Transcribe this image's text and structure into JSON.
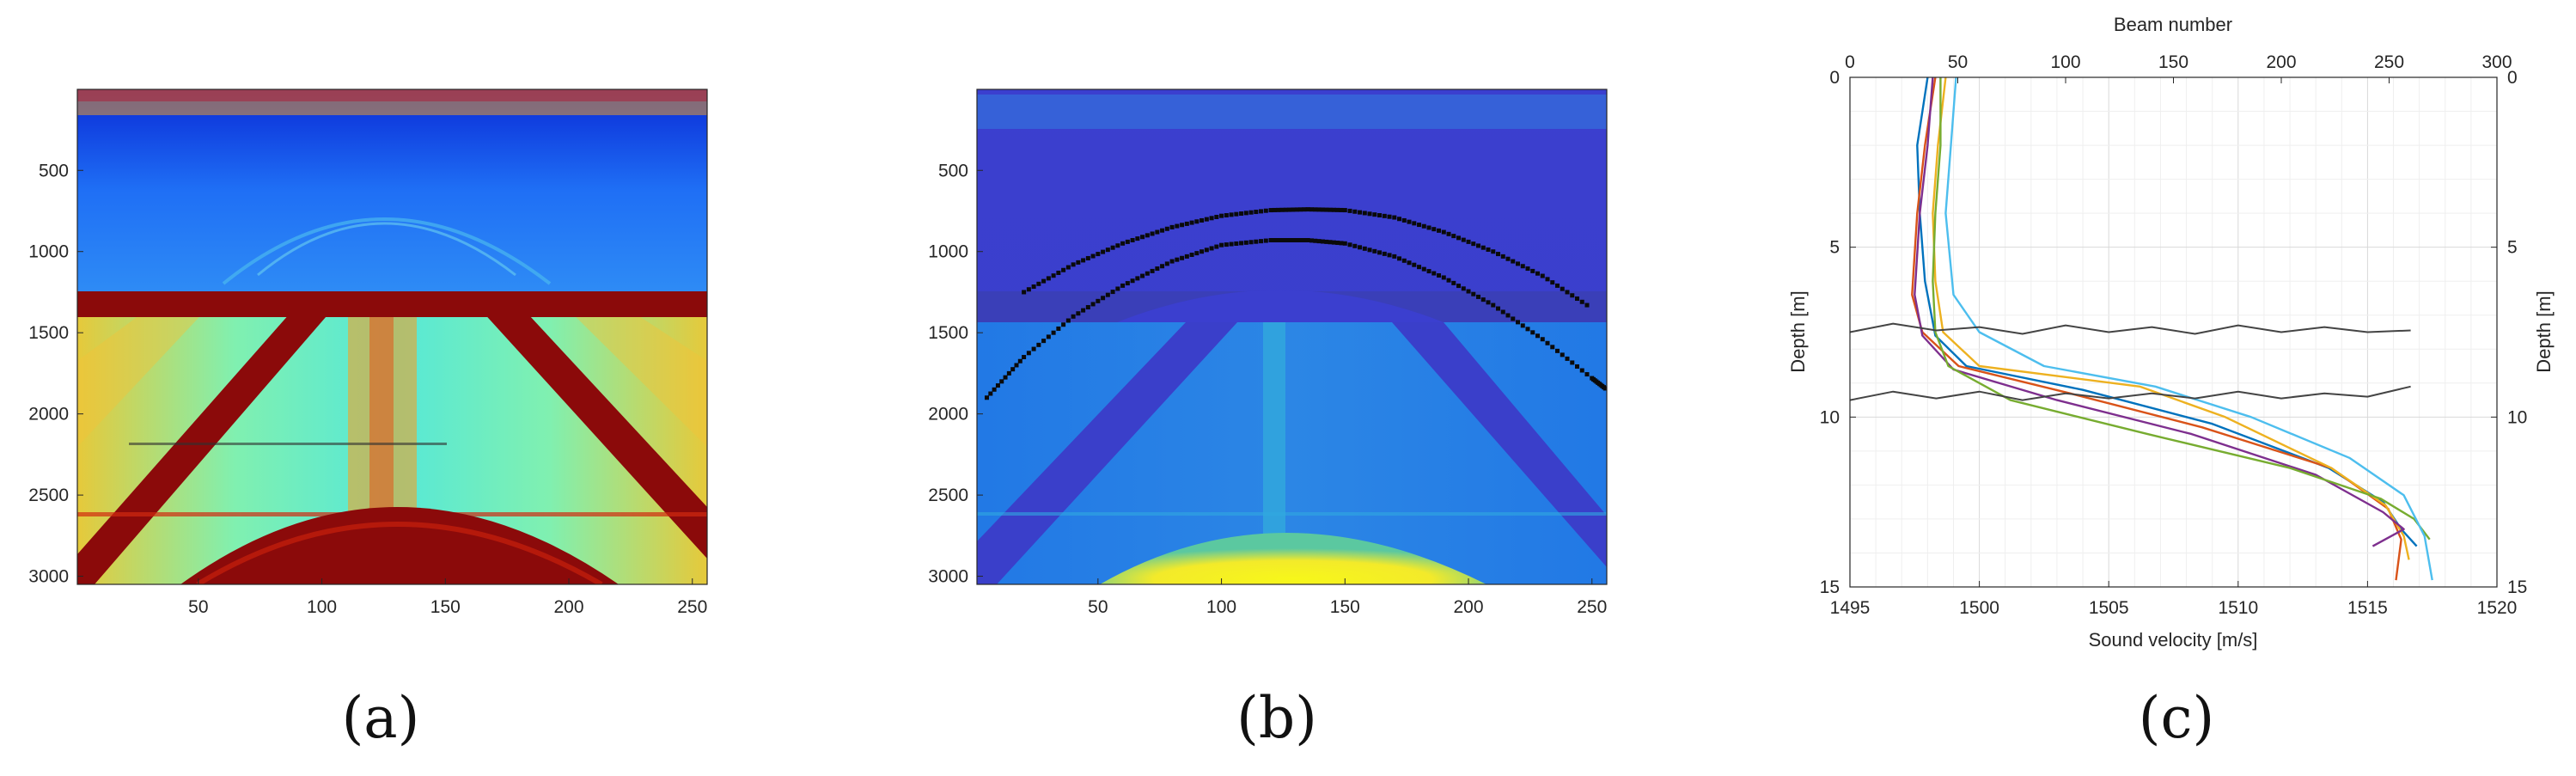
{
  "figure": {
    "panel_labels": [
      "(a)",
      "(b)",
      "(c)"
    ]
  },
  "chart_data": [
    {
      "type": "heatmap",
      "panel": "(a)",
      "title": "",
      "xlabel": "",
      "ylabel": "",
      "xlim": [
        1,
        256
      ],
      "ylim": [
        3050,
        1
      ],
      "xticks": [
        50,
        100,
        150,
        200,
        250
      ],
      "yticks": [
        500,
        1000,
        1500,
        2000,
        2500,
        3000
      ],
      "colormap": "jet",
      "features": {
        "saturated_band_rows": [
          1250,
          1440
        ],
        "surface_band_row": 120,
        "bottom_echo_apex": [
          125,
          2530
        ],
        "water_column_arc_apex": [
          125,
          720
        ],
        "outer_arc_rows_at_edges": [
          2900,
          2900
        ]
      }
    },
    {
      "type": "heatmap",
      "panel": "(b)",
      "title": "",
      "xlabel": "",
      "ylabel": "",
      "xlim": [
        1,
        256
      ],
      "ylim": [
        3050,
        1
      ],
      "xticks": [
        50,
        100,
        150,
        200,
        250
      ],
      "yticks": [
        500,
        1000,
        1500,
        2000,
        2500,
        3000
      ],
      "colormap": "parula",
      "detected_points": [
        {
          "name": "arc-1",
          "x": [
            20,
            40,
            60,
            80,
            100,
            120,
            135,
            150,
            170,
            190,
            210,
            230,
            250
          ],
          "y": [
            1250,
            1080,
            950,
            850,
            780,
            745,
            740,
            745,
            790,
            880,
            1000,
            1150,
            1350
          ]
        },
        {
          "name": "arc-2",
          "x": [
            5,
            20,
            40,
            60,
            80,
            100,
            120,
            135,
            150,
            170,
            190,
            210,
            230,
            250,
            256
          ],
          "y": [
            1900,
            1650,
            1400,
            1210,
            1060,
            960,
            930,
            930,
            950,
            1030,
            1160,
            1330,
            1540,
            1780,
            1850
          ]
        }
      ]
    },
    {
      "type": "line",
      "panel": "(c)",
      "title": "",
      "xlabel": "Sound velocity [m/s]",
      "ylabel": "Depth [m]",
      "x2label": "Beam number",
      "y2label": "Depth [m]",
      "xlim": [
        1495,
        1520
      ],
      "ylim": [
        15,
        0
      ],
      "x2lim": [
        0,
        300
      ],
      "xticks": [
        1495,
        1500,
        1505,
        1510,
        1515,
        1520
      ],
      "yticks": [
        0,
        5,
        10,
        15
      ],
      "x2ticks": [
        0,
        50,
        100,
        150,
        200,
        250,
        300
      ],
      "y2ticks": [
        0,
        5,
        10,
        15
      ],
      "grid": true,
      "series": [
        {
          "color": "#0072BD",
          "x": [
            1498.0,
            1497.6,
            1497.7,
            1497.9,
            1498.3,
            1499.5,
            1504.0,
            1509.0,
            1513.5,
            1515.6,
            1516.3,
            1516.9
          ],
          "y": [
            0,
            2,
            4,
            6,
            7.6,
            8.5,
            9.2,
            10.2,
            11.5,
            12.5,
            13.3,
            13.8
          ]
        },
        {
          "color": "#D95319",
          "x": [
            1498.3,
            1497.9,
            1497.6,
            1497.4,
            1497.8,
            1499.2,
            1503.5,
            1508.6,
            1513.6,
            1515.8,
            1516.3,
            1516.1
          ],
          "y": [
            0,
            2,
            4,
            6.4,
            7.5,
            8.5,
            9.3,
            10.3,
            11.5,
            12.7,
            13.6,
            14.8
          ]
        },
        {
          "color": "#EDB120",
          "x": [
            1498.7,
            1498.4,
            1498.2,
            1498.3,
            1498.6,
            1500.0,
            1506.2,
            1509.5,
            1513.6,
            1515.7,
            1516.4,
            1516.6
          ],
          "y": [
            0,
            2,
            4,
            6,
            7.5,
            8.5,
            9.1,
            10.0,
            11.5,
            12.6,
            13.5,
            14.2
          ]
        },
        {
          "color": "#7E2F8E",
          "x": [
            1498.2,
            1498.0,
            1497.7,
            1497.5,
            1497.8,
            1499.0,
            1503.0,
            1508.2,
            1513.0,
            1515.6,
            1516.4,
            1515.2
          ],
          "y": [
            0,
            2,
            4,
            6.4,
            7.6,
            8.6,
            9.5,
            10.5,
            11.7,
            12.8,
            13.3,
            13.8
          ]
        },
        {
          "color": "#77AC30",
          "x": [
            1498.5,
            1498.5,
            1498.3,
            1498.2,
            1498.3,
            1498.8,
            1501.2,
            1506.5,
            1512.0,
            1515.5,
            1516.8,
            1517.4
          ],
          "y": [
            0,
            2,
            4,
            6,
            7.5,
            8.5,
            9.5,
            10.5,
            11.5,
            12.4,
            13.0,
            13.6
          ]
        },
        {
          "color": "#4DBEEE",
          "x": [
            1499.1,
            1498.9,
            1498.7,
            1499.0,
            1500.0,
            1502.5,
            1506.8,
            1510.5,
            1514.3,
            1516.4,
            1517.2,
            1517.5
          ],
          "y": [
            0,
            2,
            4,
            6.4,
            7.5,
            8.5,
            9.1,
            10.0,
            11.2,
            12.3,
            13.5,
            14.8
          ]
        }
      ],
      "overlay_lines": [
        {
          "name": "upper-wavy",
          "color": "#444444",
          "x2": [
            0,
            20,
            40,
            60,
            80,
            100,
            120,
            140,
            160,
            180,
            200,
            220,
            240,
            260
          ],
          "y": [
            7.5,
            7.25,
            7.45,
            7.35,
            7.55,
            7.3,
            7.5,
            7.35,
            7.55,
            7.3,
            7.5,
            7.35,
            7.5,
            7.45
          ]
        },
        {
          "name": "lower-wavy",
          "color": "#444444",
          "x2": [
            0,
            20,
            40,
            60,
            80,
            100,
            120,
            140,
            160,
            180,
            200,
            220,
            240,
            260
          ],
          "y": [
            9.5,
            9.25,
            9.45,
            9.25,
            9.5,
            9.3,
            9.45,
            9.3,
            9.45,
            9.25,
            9.45,
            9.3,
            9.4,
            9.1
          ]
        }
      ]
    }
  ]
}
